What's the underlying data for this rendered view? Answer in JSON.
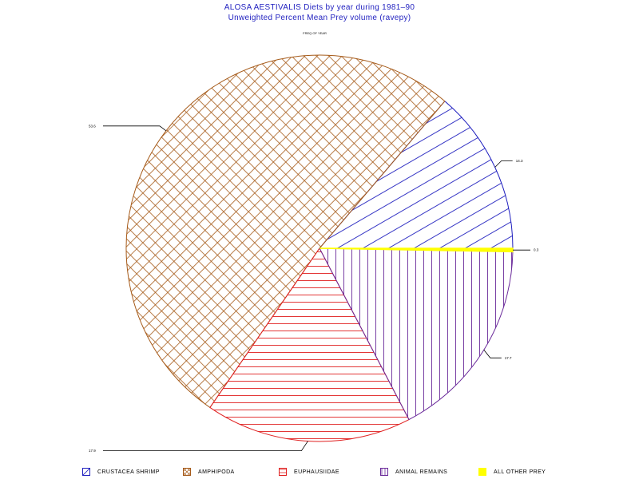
{
  "title": {
    "line1": "ALOSA AESTIVALIS Diets by year during 1981–90",
    "line2": "Unweighted Percent Mean Prey volume (ravepy)"
  },
  "chart_data": {
    "type": "pie",
    "title": "ALOSA AESTIVALIS Diets by year during 1981–90",
    "subtitle": "Unweighted Percent Mean Prey volume (ravepy)",
    "pie_label": "FREQ OF YEAR",
    "slices": [
      {
        "name": "CRUSTACEA SHRIMP",
        "value": 14.3,
        "label": "14.3",
        "color": "#1f1fbf",
        "pattern": "diagonal-right"
      },
      {
        "name": "AMPHIPODA",
        "value": 53.6,
        "label": "53.6",
        "color": "#a65b1a",
        "pattern": "crosshatch"
      },
      {
        "name": "EUPHAUSIIDAE",
        "value": 17.9,
        "label": "17.9",
        "color": "#e02020",
        "pattern": "horizontal"
      },
      {
        "name": "ANIMAL REMAINS",
        "value": 17.7,
        "label": "17.7",
        "color": "#6a2a9a",
        "pattern": "vertical"
      },
      {
        "name": "ALL OTHER PREY",
        "value": 0.3,
        "label": "0.3",
        "color": "#ffff00",
        "pattern": "solid"
      }
    ],
    "order": "counterclockwise-from-east",
    "legend_position": "bottom"
  }
}
